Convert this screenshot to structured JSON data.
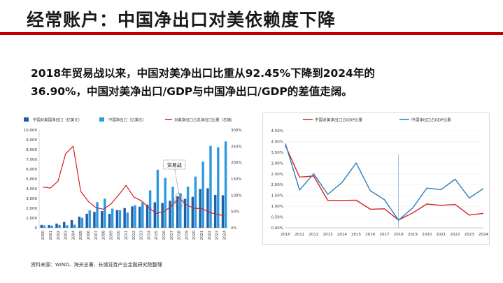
{
  "slide": {
    "title": "经常账户：中国净出口对美依赖度下降",
    "body_line1": "2018年贸易战以来，中国对美净出口比重从92.45%下降到2024年的",
    "body_line2": "36.90%，中国对美净出口/GDP与中国净出口/GDP的差值走阔。",
    "source": "资料来源：WIND、海关总署、长城证券产业金融研究院整理"
  },
  "colors": {
    "accent_red": "#c00000",
    "bar_dark": "#1f5fa6",
    "bar_light": "#2e9be0",
    "line_red": "#d62020",
    "line_blue": "#2a7fb8"
  },
  "chart_data": [
    {
      "type": "bar",
      "legend": [
        "中国对美国净出口（亿美元）",
        "中国净出口（亿美元）",
        "对美净出口占总净出口比重（右轴）"
      ],
      "annotation": "贸易战",
      "categories": [
        "2000",
        "2001",
        "2002",
        "2003",
        "2004",
        "2005",
        "2006",
        "2007",
        "2008",
        "2009",
        "2010",
        "2011",
        "2012",
        "2013",
        "2014",
        "2015",
        "2016",
        "2017",
        "2018",
        "2019",
        "2020",
        "2021",
        "2022",
        "2023",
        "2024"
      ],
      "series": [
        {
          "name": "中国对美国净出口（亿美元）",
          "axis": "left",
          "values": [
            300,
            280,
            430,
            590,
            800,
            1140,
            1440,
            1630,
            1710,
            1430,
            1810,
            2020,
            2190,
            2160,
            2370,
            2610,
            2540,
            2760,
            3230,
            2960,
            3170,
            3970,
            4040,
            3360,
            3330
          ]
        },
        {
          "name": "中国净出口（亿美元）",
          "axis": "left",
          "values": [
            240,
            230,
            300,
            260,
            320,
            1020,
            1780,
            2620,
            2980,
            1960,
            1810,
            1550,
            2310,
            2590,
            3830,
            5940,
            5100,
            4200,
            3510,
            4210,
            5240,
            6760,
            8380,
            8230,
            8830
          ]
        },
        {
          "name": "对美净出口占总净出口比重（右轴）",
          "axis": "right",
          "type": "line",
          "values": [
            125,
            122,
            143,
            227,
            250,
            112,
            81,
            62,
            57,
            73,
            100,
            130,
            95,
            83,
            62,
            44,
            50,
            66,
            92,
            70,
            60,
            59,
            48,
            41,
            37
          ]
        }
      ],
      "y_left": {
        "min": 0,
        "max": 10000,
        "ticks": [
          "0",
          "1,000",
          "2,000",
          "3,000",
          "4,000",
          "5,000",
          "6,000",
          "7,000",
          "8,000",
          "9,000",
          "10,000"
        ]
      },
      "y_right": {
        "min": 0,
        "max": 300,
        "ticks": [
          "0%",
          "50%",
          "100%",
          "150%",
          "200%",
          "250%",
          "300%"
        ]
      }
    },
    {
      "type": "line",
      "legend": [
        "中国对美净出口占GDP比重",
        "中国净出口占GDP比重"
      ],
      "x": [
        "2010",
        "2011",
        "2012",
        "2013",
        "2014",
        "2015",
        "2016",
        "2017",
        "2018",
        "2019",
        "2020",
        "2021",
        "2022",
        "2023",
        "2024"
      ],
      "series": [
        {
          "name": "中国对美净出口占GDP比重",
          "values": [
            3.8,
            2.35,
            2.4,
            1.27,
            1.27,
            1.28,
            0.86,
            0.88,
            0.36,
            0.69,
            1.1,
            1.04,
            1.08,
            0.59,
            0.67
          ]
        },
        {
          "name": "中国净出口占GDP比重",
          "values": [
            3.9,
            1.75,
            2.5,
            1.55,
            2.1,
            3.0,
            1.72,
            1.3,
            0.35,
            0.92,
            1.84,
            1.77,
            2.25,
            1.38,
            1.82
          ]
        }
      ],
      "marker_at": "2018",
      "ylim": [
        0,
        4.5
      ],
      "y_ticks": [
        "0.00%",
        "0.50%",
        "1.00%",
        "1.50%",
        "2.00%",
        "2.50%",
        "3.00%",
        "3.50%",
        "4.00%",
        "4.50%"
      ]
    }
  ]
}
